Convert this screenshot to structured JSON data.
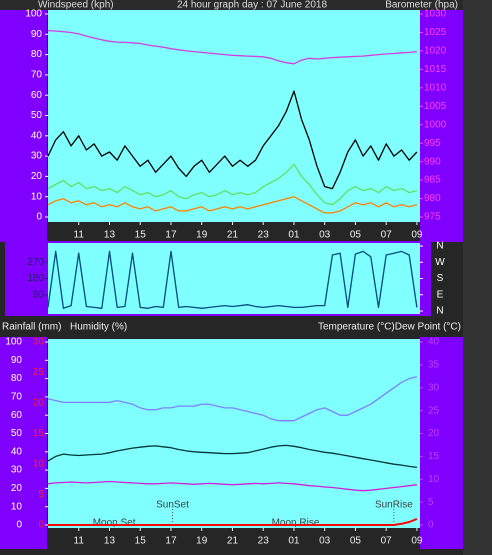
{
  "chart_data": [
    {
      "type": "line",
      "title": "24 hour graph day : 07 June 2018",
      "ylabel": "Windspeed (kph)",
      "y2label": "Barometer (hpa)",
      "x": [
        0,
        0.5,
        1,
        1.5,
        2,
        2.5,
        3,
        3.5,
        4,
        4.5,
        5,
        5.5,
        6,
        6.5,
        7,
        7.5,
        8,
        8.5,
        9,
        9.5,
        10,
        10.5,
        11,
        11.5,
        12,
        12.5,
        13,
        13.5,
        14,
        14.5,
        15,
        15.5,
        16,
        16.5,
        17,
        17.5,
        18,
        18.5,
        19,
        19.5,
        20,
        20.5,
        21,
        21.5,
        22,
        22.5,
        23,
        23.5,
        24
      ],
      "xlim": [
        0,
        24.2
      ],
      "xticks": [
        {
          "value": 2,
          "label": "11"
        },
        {
          "value": 4,
          "label": "13"
        },
        {
          "value": 6,
          "label": "15"
        },
        {
          "value": 8,
          "label": "17"
        },
        {
          "value": 10,
          "label": "19"
        },
        {
          "value": 12,
          "label": "21"
        },
        {
          "value": 14,
          "label": "23"
        },
        {
          "value": 16,
          "label": "01"
        },
        {
          "value": 18,
          "label": "03"
        },
        {
          "value": 20,
          "label": "05"
        },
        {
          "value": 22,
          "label": "07"
        },
        {
          "value": 24,
          "label": "09"
        }
      ],
      "ylim": [
        0,
        100
      ],
      "yticks": [
        0,
        10,
        20,
        30,
        40,
        50,
        60,
        70,
        80,
        90,
        100
      ],
      "y2lim": [
        975,
        1030
      ],
      "y2ticks": [
        975,
        980,
        985,
        990,
        995,
        1000,
        1005,
        1010,
        1015,
        1020,
        1025,
        1030
      ],
      "series": [
        {
          "color": "#000000",
          "values": [
            30,
            38,
            42,
            35,
            40,
            33,
            36,
            30,
            32,
            28,
            35,
            30,
            25,
            28,
            22,
            26,
            30,
            24,
            20,
            25,
            28,
            22,
            26,
            30,
            25,
            28,
            25,
            28,
            35,
            40,
            45,
            52,
            62,
            48,
            38,
            25,
            15,
            14,
            22,
            32,
            38,
            30,
            35,
            28,
            36,
            30,
            33,
            28,
            32
          ]
        },
        {
          "color": "#60e060",
          "values": [
            14,
            16,
            18,
            15,
            17,
            14,
            15,
            13,
            14,
            12,
            15,
            13,
            11,
            12,
            10,
            11,
            13,
            10,
            9,
            11,
            12,
            10,
            11,
            13,
            11,
            12,
            11,
            12,
            15,
            17,
            19,
            22,
            26,
            20,
            16,
            11,
            7,
            6,
            9,
            13,
            15,
            13,
            14,
            12,
            15,
            13,
            14,
            12,
            13
          ]
        },
        {
          "color": "#ff8000",
          "values": [
            6,
            8,
            9,
            7,
            8,
            6,
            7,
            5,
            6,
            5,
            7,
            5,
            4,
            5,
            3,
            4,
            5,
            3,
            3,
            4,
            5,
            3,
            4,
            5,
            4,
            5,
            4,
            5,
            6,
            7,
            8,
            9,
            10,
            8,
            6,
            4,
            2,
            2,
            3,
            5,
            7,
            6,
            7,
            5,
            7,
            5,
            6,
            5,
            6
          ]
        },
        {
          "color": "#d040e0",
          "axis": "y2",
          "values": [
            1025.5,
            1025.4,
            1025.2,
            1025,
            1024.6,
            1024,
            1023.5,
            1023,
            1022.6,
            1022.4,
            1022.3,
            1022.2,
            1022,
            1021.6,
            1021.3,
            1021,
            1020.6,
            1020.3,
            1020,
            1019.8,
            1019.6,
            1019.4,
            1019.2,
            1019,
            1018.8,
            1018.7,
            1018.6,
            1018.5,
            1018.4,
            1018,
            1017.3,
            1016.8,
            1016.5,
            1017.5,
            1018,
            1017.8,
            1018,
            1018.2,
            1018.3,
            1018.4,
            1018.5,
            1018.6,
            1018.8,
            1019,
            1019.2,
            1019.3,
            1019.5,
            1019.6,
            1019.8
          ]
        }
      ]
    },
    {
      "type": "line",
      "x": [
        0,
        0.5,
        1,
        1.5,
        2,
        2.5,
        3,
        3.5,
        4,
        4.5,
        5,
        5.5,
        6,
        6.5,
        7,
        7.5,
        8,
        8.5,
        9,
        9.5,
        10,
        10.5,
        11,
        11.5,
        12,
        12.5,
        13,
        13.5,
        14,
        14.5,
        15,
        15.5,
        16,
        16.5,
        17,
        17.5,
        18,
        18.5,
        19,
        19.5,
        20,
        20.5,
        21,
        21.5,
        22,
        22.5,
        23,
        23.5,
        24
      ],
      "xlim": [
        0,
        24.2
      ],
      "ylim": [
        0,
        360
      ],
      "yticks": [
        90,
        180,
        270
      ],
      "y2lim": [
        0,
        360
      ],
      "y2ticks": [
        {
          "value": 360,
          "label": "N"
        },
        {
          "value": 270,
          "label": "W"
        },
        {
          "value": 180,
          "label": "S"
        },
        {
          "value": 90,
          "label": "E"
        },
        {
          "value": 0,
          "label": "N"
        }
      ],
      "series": [
        {
          "color": "#004a80",
          "values": [
            20,
            330,
            15,
            30,
            320,
            25,
            20,
            15,
            330,
            20,
            25,
            320,
            20,
            15,
            25,
            20,
            330,
            20,
            25,
            20,
            15,
            20,
            25,
            30,
            25,
            30,
            35,
            25,
            20,
            25,
            30,
            25,
            20,
            20,
            25,
            30,
            30,
            310,
            320,
            20,
            315,
            330,
            300,
            20,
            310,
            320,
            330,
            310,
            20
          ]
        }
      ]
    },
    {
      "type": "line",
      "ylabel": "Humidity (%)",
      "y3label": "Rainfall (mm)",
      "y2label": "Temperature (°C)Dew Point (°C)",
      "x": [
        0,
        0.5,
        1,
        1.5,
        2,
        2.5,
        3,
        3.5,
        4,
        4.5,
        5,
        5.5,
        6,
        6.5,
        7,
        7.5,
        8,
        8.5,
        9,
        9.5,
        10,
        10.5,
        11,
        11.5,
        12,
        12.5,
        13,
        13.5,
        14,
        14.5,
        15,
        15.5,
        16,
        16.5,
        17,
        17.5,
        18,
        18.5,
        19,
        19.5,
        20,
        20.5,
        21,
        21.5,
        22,
        22.5,
        23,
        23.5,
        24
      ],
      "xlim": [
        0,
        24.2
      ],
      "xticks": [
        {
          "value": 2,
          "label": "11"
        },
        {
          "value": 4,
          "label": "13"
        },
        {
          "value": 6,
          "label": "15"
        },
        {
          "value": 8,
          "label": "17"
        },
        {
          "value": 10,
          "label": "19"
        },
        {
          "value": 12,
          "label": "21"
        },
        {
          "value": 14,
          "label": "23"
        },
        {
          "value": 16,
          "label": "01"
        },
        {
          "value": 18,
          "label": "03"
        },
        {
          "value": 20,
          "label": "05"
        },
        {
          "value": 22,
          "label": "07"
        },
        {
          "value": 24,
          "label": "09"
        }
      ],
      "ylim": [
        0,
        100
      ],
      "yticks": [
        0,
        10,
        20,
        30,
        40,
        50,
        60,
        70,
        80,
        90,
        100
      ],
      "y2lim": [
        0,
        40
      ],
      "y2ticks": [
        0,
        5,
        10,
        15,
        20,
        25,
        30,
        35,
        40
      ],
      "y3lim": [
        0,
        30
      ],
      "y3ticks": [
        0,
        5,
        10,
        15,
        20,
        25,
        30
      ],
      "annotations": [
        {
          "text": "Moon Set",
          "x": 4.3
        },
        {
          "text": "SunSet",
          "x": 8.1
        },
        {
          "text": "Moon Rise",
          "x": 16.1
        },
        {
          "text": "SunRise",
          "x": 22.5
        }
      ],
      "series": [
        {
          "color": "#8080ff",
          "values": [
            69,
            68,
            67,
            67,
            67,
            67,
            67,
            67,
            67,
            68,
            67,
            66,
            64,
            63,
            63,
            64,
            64,
            65,
            65,
            65,
            66,
            66,
            65,
            64,
            64,
            63,
            62,
            61,
            60,
            58,
            57,
            57,
            57,
            59,
            61,
            63,
            64,
            62,
            60,
            60,
            62,
            64,
            66,
            69,
            72,
            75,
            78,
            80,
            81
          ]
        },
        {
          "color": "#003838",
          "axis": "y2",
          "values": [
            14,
            15,
            15.5,
            15.3,
            15.2,
            15.3,
            15.4,
            15.5,
            15.8,
            16.2,
            16.5,
            16.8,
            17,
            17.2,
            17.3,
            17.1,
            16.9,
            16.5,
            16.2,
            16,
            15.9,
            15.8,
            15.7,
            15.6,
            15.6,
            15.7,
            15.8,
            16.2,
            16.6,
            17,
            17.3,
            17.4,
            17.2,
            16.9,
            16.5,
            16.2,
            15.9,
            15.7,
            15.4,
            15.1,
            14.8,
            14.5,
            14.2,
            13.9,
            13.6,
            13.3,
            13.1,
            12.8,
            12.6
          ]
        },
        {
          "color": "#d020d8",
          "axis": "y2",
          "values": [
            9,
            9.2,
            9.3,
            9.4,
            9.3,
            9.2,
            9.3,
            9.4,
            9.5,
            9.4,
            9.3,
            9.2,
            9.1,
            9,
            9,
            9.1,
            9.2,
            9.1,
            9,
            8.9,
            9,
            9.1,
            9,
            8.9,
            8.8,
            8.9,
            9,
            9.1,
            9,
            9.1,
            9.2,
            9.1,
            9,
            8.8,
            8.6,
            8.5,
            8.3,
            8.2,
            8,
            7.8,
            7.6,
            7.5,
            7.6,
            7.8,
            8,
            8.2,
            8.4,
            8.6,
            8.8
          ]
        },
        {
          "color": "#ff0000",
          "axis": "y3",
          "values": [
            0,
            0,
            0,
            0,
            0,
            0,
            0,
            0,
            0,
            0,
            0,
            0,
            0,
            0,
            0,
            0,
            0,
            0,
            0,
            0,
            0,
            0,
            0,
            0,
            0,
            0,
            0,
            0,
            0,
            0,
            0,
            0,
            0,
            0,
            0,
            0,
            0,
            0,
            0,
            0,
            0,
            0,
            0,
            0,
            0,
            0,
            0.2,
            0.5,
            1
          ]
        }
      ]
    }
  ]
}
